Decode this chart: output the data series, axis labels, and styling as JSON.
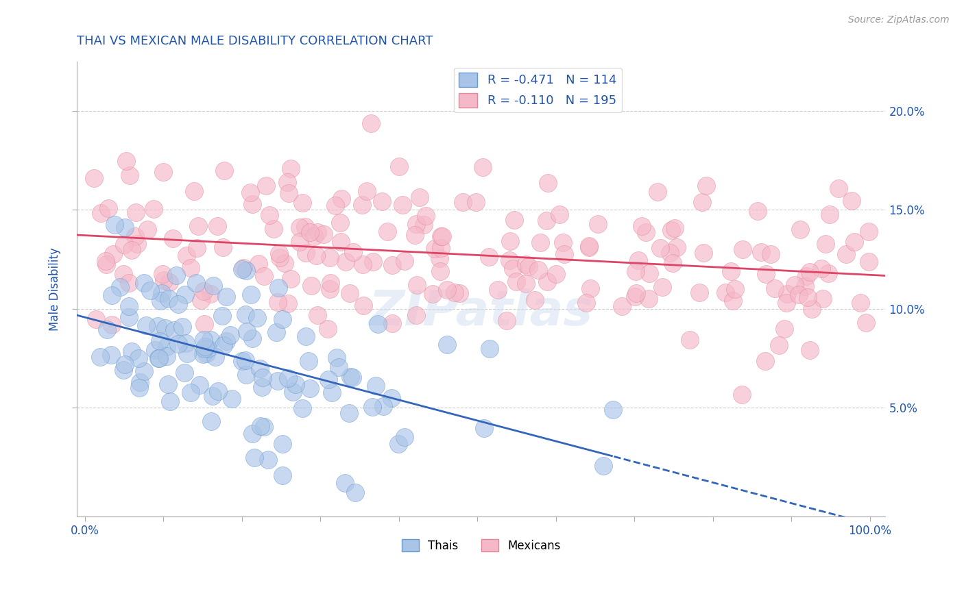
{
  "title": "THAI VS MEXICAN MALE DISABILITY CORRELATION CHART",
  "source": "Source: ZipAtlas.com",
  "ylabel": "Male Disability",
  "xlim": [
    -0.01,
    1.02
  ],
  "ylim": [
    -0.005,
    0.225
  ],
  "yticks": [
    0.05,
    0.1,
    0.15,
    0.2
  ],
  "ytick_labels": [
    "5.0%",
    "10.0%",
    "15.0%",
    "20.0%"
  ],
  "xtick_labels_shown": [
    "0.0%",
    "100.0%"
  ],
  "xtick_positions_shown": [
    0.0,
    1.0
  ],
  "thai_fill_color": "#aac4e8",
  "thai_edge_color": "#6699cc",
  "mexican_fill_color": "#f5b8c8",
  "mexican_edge_color": "#e08898",
  "thai_line_color": "#3366bb",
  "mexican_line_color": "#dd4466",
  "R_thai": -0.471,
  "N_thai": 114,
  "R_mexican": -0.11,
  "N_mexican": 195,
  "background_color": "#ffffff",
  "grid_color": "#cccccc",
  "title_color": "#2255aa",
  "axis_label_color": "#2255aa",
  "source_color": "#999999",
  "legend_label_color": "#2255aa",
  "watermark_color": "#d0dff0",
  "watermark_text": "ZIPatlas"
}
